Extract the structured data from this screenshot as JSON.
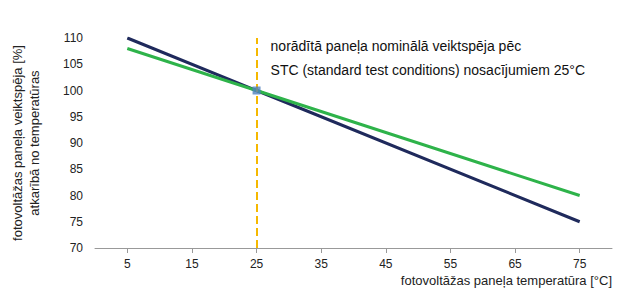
{
  "chart_data": {
    "type": "line",
    "x_label": "fotovoltāžas paneļa temperatūra [°C]",
    "y_label": "fotovoltāžas paneļa veiktspēja [%]\natkarībā no temperatūras",
    "x": [
      5,
      25,
      75
    ],
    "series": [
      {
        "color": "#1f2a5c",
        "values": [
          110,
          100,
          75
        ]
      },
      {
        "color": "#2eb34a",
        "values": [
          108,
          100,
          80
        ]
      }
    ],
    "xlim": [
      0,
      80
    ],
    "xticks": [
      5,
      15,
      25,
      35,
      45,
      55,
      65,
      75
    ],
    "ylim": [
      70,
      110
    ],
    "yticks": [
      70,
      75,
      80,
      85,
      90,
      95,
      100,
      105,
      110
    ],
    "grid": false,
    "annotations": [
      {
        "text": "norādītā paneļa nominālā veiktspēja pēc\nSTC (standard test conditions) nosacījumiem 25°C",
        "x": 25,
        "y": 100,
        "color": "#f5b800",
        "line_style": "dashed",
        "marker": "square"
      }
    ]
  }
}
